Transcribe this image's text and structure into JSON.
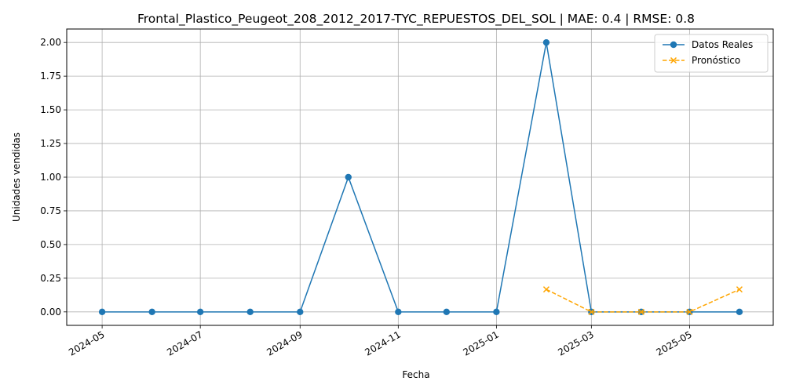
{
  "chart_data": {
    "type": "line",
    "title": "Frontal_Plastico_Peugeot_208_2012_2017-TYC_REPUESTOS_DEL_SOL | MAE: 0.4 | RMSE: 0.8",
    "xlabel": "Fecha",
    "ylabel": "Unidades vendidas",
    "x_ticks": [
      "2024-05",
      "2024-07",
      "2024-09",
      "2024-11",
      "2025-01",
      "2025-03",
      "2025-05"
    ],
    "y_ticks": [
      "0.00",
      "0.25",
      "0.50",
      "0.75",
      "1.00",
      "1.25",
      "1.50",
      "1.75",
      "2.00"
    ],
    "ylim": [
      -0.1,
      2.1
    ],
    "xlim": [
      "2024-04-09",
      "2025-06-22"
    ],
    "grid": true,
    "legend_position": "top-right",
    "series": [
      {
        "name": "Datos Reales",
        "color": "#1f77b4",
        "marker": "circle",
        "linestyle": "solid",
        "x": [
          "2024-05-01",
          "2024-06-01",
          "2024-07-01",
          "2024-08-01",
          "2024-09-01",
          "2024-10-01",
          "2024-11-01",
          "2024-12-01",
          "2025-01-01",
          "2025-02-01",
          "2025-03-01",
          "2025-04-01",
          "2025-05-01",
          "2025-06-01"
        ],
        "values": [
          0,
          0,
          0,
          0,
          0,
          1,
          0,
          0,
          0,
          2,
          0,
          0,
          0,
          0
        ]
      },
      {
        "name": "Pronóstico",
        "color": "#ffa500",
        "marker": "x",
        "linestyle": "dashed",
        "x": [
          "2025-02-01",
          "2025-03-01",
          "2025-04-01",
          "2025-05-01",
          "2025-06-01"
        ],
        "values": [
          0.167,
          0,
          0,
          0,
          0.167
        ]
      }
    ]
  }
}
